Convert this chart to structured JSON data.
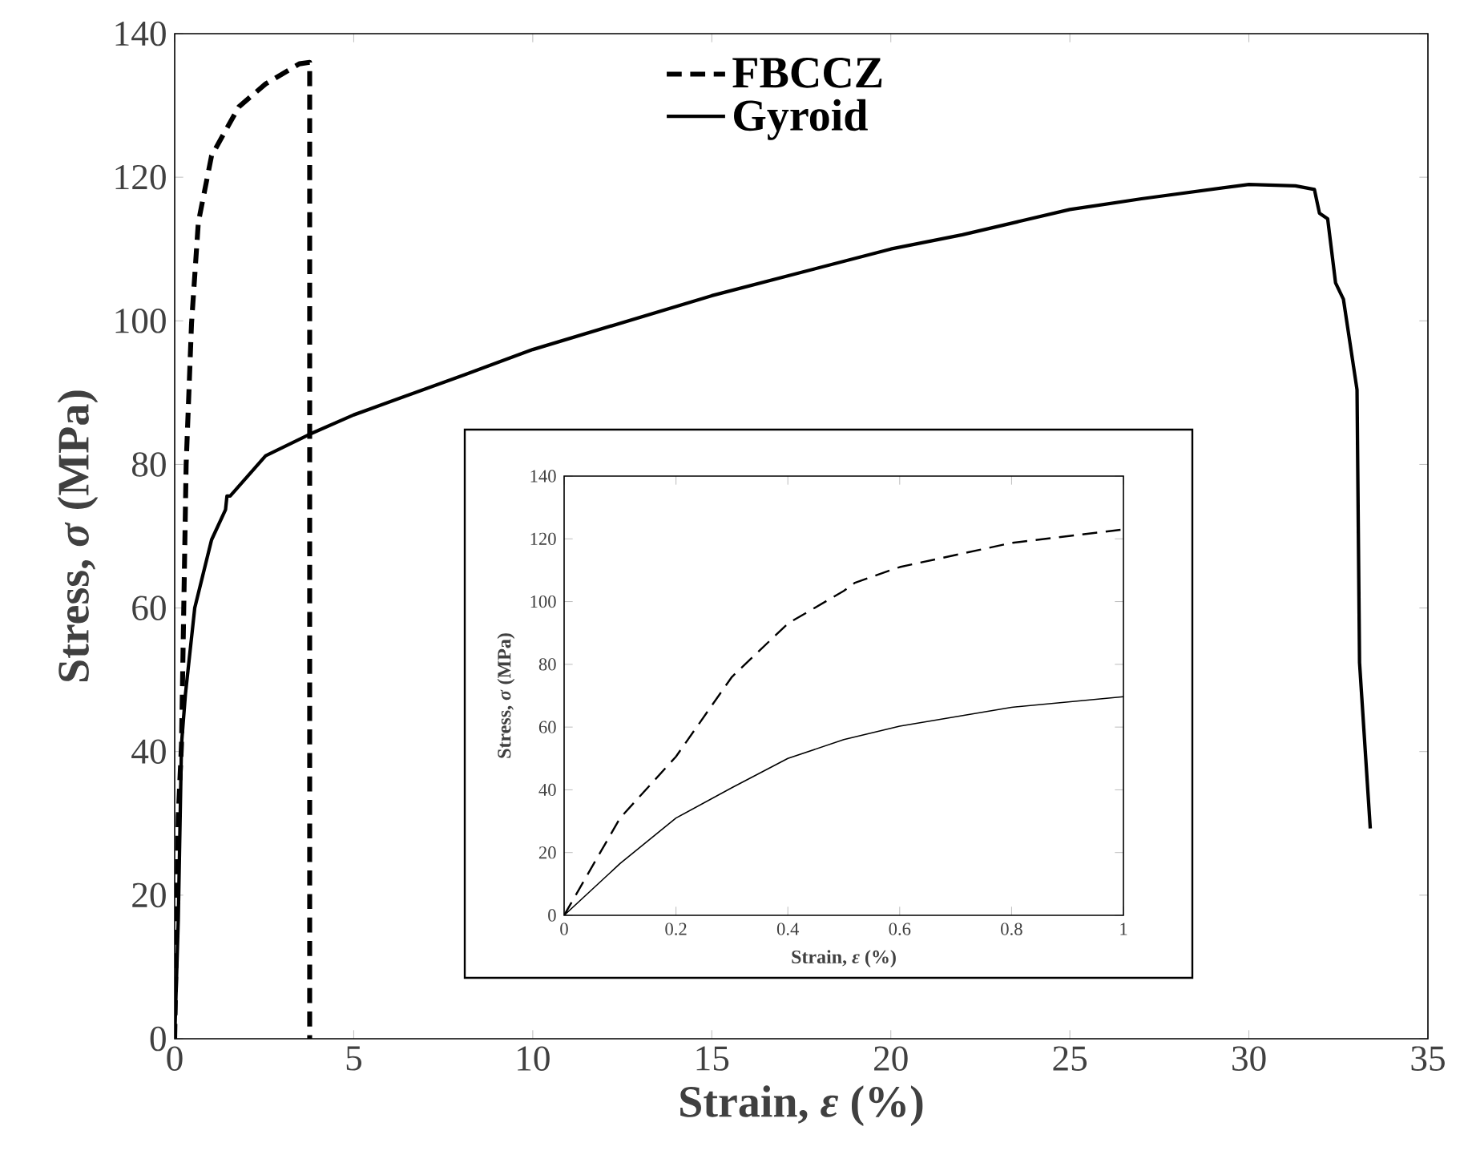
{
  "chart_data": [
    {
      "type": "line",
      "xlabel": "Strain,  *ε* (%)",
      "ylabel": "Stress,  *σ* (MPa)",
      "xlim": [
        0,
        35
      ],
      "ylim": [
        0,
        140
      ],
      "xticks": [
        0,
        5,
        10,
        15,
        20,
        25,
        30,
        35
      ],
      "yticks": [
        0,
        20,
        40,
        60,
        80,
        100,
        120,
        140
      ],
      "legend": "top",
      "series": [
        {
          "name": "FBCCZ",
          "color": "#000000",
          "line_style": "dashed",
          "x": [
            0,
            0.1,
            0.19,
            0.32,
            0.47,
            0.66,
            1.03,
            1.79,
            2.54,
            3.48,
            3.77,
            3.77
          ],
          "values": [
            0,
            31,
            41,
            80,
            99.6,
            113.7,
            123,
            129.8,
            133,
            135.8,
            136,
            0
          ]
        },
        {
          "name": "Gyroid",
          "color": "#000000",
          "line_style": "solid",
          "x": [
            0,
            0.1,
            0.19,
            0.3,
            0.56,
            1.03,
            1.42,
            1.46,
            1.55,
            2.54,
            3.77,
            5.0,
            8.1,
            10,
            15,
            20,
            22,
            25,
            27,
            30,
            31.3,
            31.83,
            31.97,
            32.2,
            32.42,
            32.64,
            33.02,
            33.09,
            33.39
          ],
          "values": [
            0,
            16.5,
            41,
            48,
            60,
            69.5,
            73.7,
            75.6,
            75.6,
            81.2,
            84.2,
            86.9,
            92.5,
            96,
            103.5,
            110,
            112,
            115.5,
            117,
            119,
            118.8,
            118.3,
            115,
            114.2,
            105.3,
            103,
            90.4,
            52.4,
            29.3
          ]
        }
      ]
    },
    {
      "type": "line",
      "xlabel": "Strain,  *ε* (%)",
      "ylabel": "Stress,  *σ* (MPa)",
      "xlim": [
        0,
        1
      ],
      "ylim": [
        0,
        140
      ],
      "xticks": [
        0,
        0.2,
        0.4,
        0.6,
        0.8,
        1
      ],
      "yticks": [
        0,
        20,
        40,
        60,
        80,
        100,
        120,
        140
      ],
      "series": [
        {
          "color": "#000000",
          "line_style": "dashed",
          "x": [
            0,
            0.1,
            0.2,
            0.3,
            0.4,
            0.5,
            0.52,
            0.6,
            0.8,
            1.0
          ],
          "values": [
            0,
            31,
            50.6,
            76,
            93,
            103.4,
            106,
            111,
            118.7,
            123
          ]
        },
        {
          "color": "#000000",
          "line_style": "solid",
          "x": [
            0,
            0.1,
            0.2,
            0.3,
            0.4,
            0.5,
            0.6,
            0.8,
            1.0
          ],
          "values": [
            0,
            16.5,
            31,
            40.7,
            50,
            56,
            60.3,
            66.3,
            69.7
          ]
        }
      ]
    }
  ]
}
